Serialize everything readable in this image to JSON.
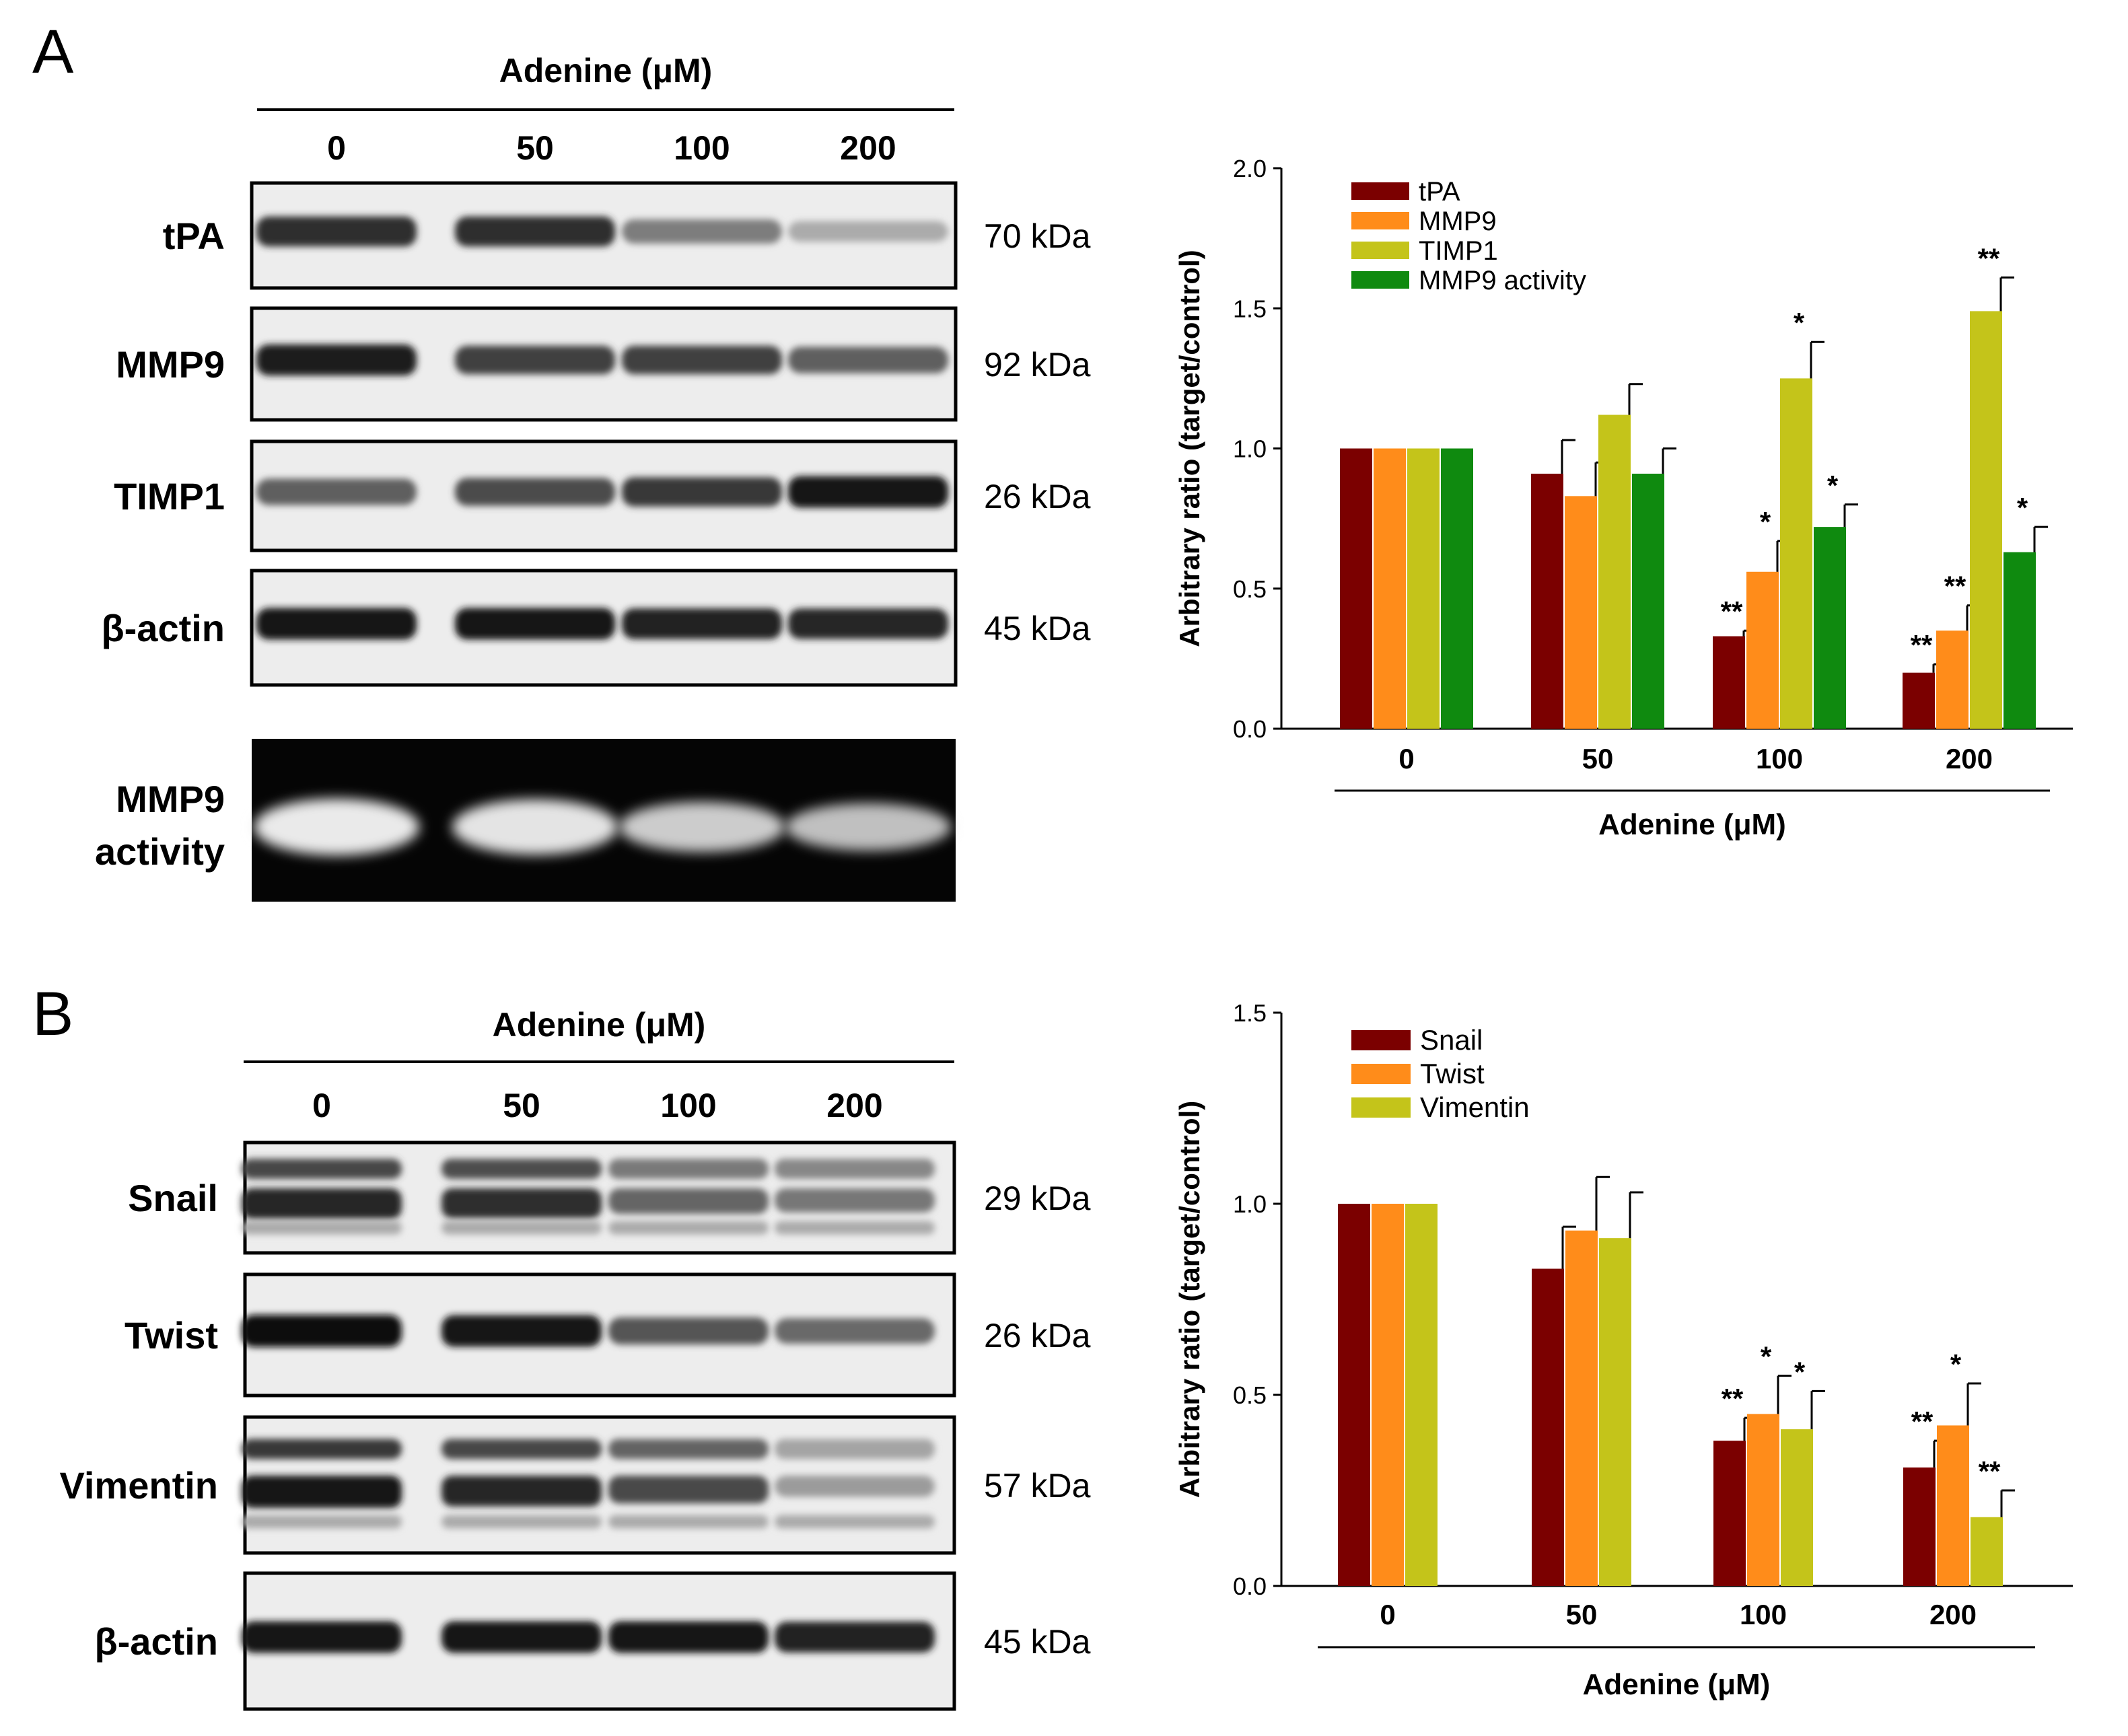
{
  "panels": [
    {
      "letter": "A",
      "treatment_label": "Adenine (μM)",
      "lanes": [
        "0",
        "50",
        "100",
        "200"
      ],
      "blots": [
        {
          "name": "tPA",
          "kda": "70 kDa",
          "dark": false,
          "bands": [
            0.85,
            0.85,
            0.45,
            0.22
          ],
          "double": false
        },
        {
          "name": "MMP9",
          "kda": "92 kDa",
          "dark": false,
          "bands": [
            0.92,
            0.75,
            0.75,
            0.6
          ],
          "double": false
        },
        {
          "name": "TIMP1",
          "kda": "26 kDa",
          "dark": false,
          "bands": [
            0.6,
            0.7,
            0.8,
            0.95
          ],
          "double": false
        },
        {
          "name": "β-actin",
          "kda": "45 kDa",
          "dark": false,
          "bands": [
            0.95,
            0.95,
            0.9,
            0.88
          ],
          "double": false
        },
        {
          "name_lines": [
            "MMP9",
            "activity"
          ],
          "kda": "",
          "dark": true,
          "bands": [
            0.95,
            0.9,
            0.7,
            0.6
          ],
          "double": false
        }
      ]
    },
    {
      "letter": "B",
      "treatment_label": "Adenine (μM)",
      "lanes": [
        "0",
        "50",
        "100",
        "200"
      ],
      "blots": [
        {
          "name": "Snail",
          "kda": "29 kDa",
          "dark": false,
          "bands": [
            0.9,
            0.85,
            0.55,
            0.45
          ],
          "double": true
        },
        {
          "name": "Twist",
          "kda": "26 kDa",
          "dark": false,
          "bands": [
            1.0,
            0.95,
            0.65,
            0.55
          ],
          "double": false
        },
        {
          "name": "Vimentin",
          "kda": "57 kDa",
          "dark": false,
          "bands": [
            1.0,
            0.9,
            0.7,
            0.25
          ],
          "double": true
        },
        {
          "name": "β-actin",
          "kda": "45 kDa",
          "dark": false,
          "bands": [
            0.95,
            0.95,
            0.95,
            0.9
          ],
          "double": false
        }
      ]
    }
  ],
  "chart_data": [
    {
      "type": "bar",
      "xlabel": "Adenine (μM)",
      "ylabel": "Arbitrary ratio (target/control)",
      "categories": [
        "0",
        "50",
        "100",
        "200"
      ],
      "ylim": [
        0,
        2.0
      ],
      "yticks": [
        "0.0",
        "0.5",
        "1.0",
        "1.5",
        "2.0"
      ],
      "legend_position": "top-left",
      "series": [
        {
          "name": "tPA",
          "color": "#7B0000",
          "values": [
            1.0,
            0.91,
            0.33,
            0.2
          ],
          "errors": [
            0,
            0.12,
            0.02,
            0.03
          ],
          "sig": [
            "",
            "",
            "**",
            "**"
          ]
        },
        {
          "name": "MMP9",
          "color": "#FF8C1A",
          "values": [
            1.0,
            0.83,
            0.56,
            0.35
          ],
          "errors": [
            0,
            0.12,
            0.11,
            0.09
          ],
          "sig": [
            "",
            "",
            "*",
            "**"
          ]
        },
        {
          "name": "TIMP1",
          "color": "#C4C41A",
          "values": [
            1.0,
            1.12,
            1.25,
            1.49
          ],
          "errors": [
            0,
            0.11,
            0.13,
            0.12
          ],
          "sig": [
            "",
            "",
            "*",
            "**"
          ]
        },
        {
          "name": "MMP9 activity",
          "color": "#0F8A0F",
          "values": [
            1.0,
            0.91,
            0.72,
            0.63
          ],
          "errors": [
            0,
            0.09,
            0.08,
            0.09
          ],
          "sig": [
            "",
            "",
            "*",
            "*"
          ]
        }
      ]
    },
    {
      "type": "bar",
      "xlabel": "Adenine (μM)",
      "ylabel": "Arbitrary ratio (target/control)",
      "categories": [
        "0",
        "50",
        "100",
        "200"
      ],
      "ylim": [
        0,
        1.5
      ],
      "yticks": [
        "0.0",
        "0.5",
        "1.0",
        "1.5"
      ],
      "legend_position": "top-left",
      "series": [
        {
          "name": "Snail",
          "color": "#7B0000",
          "values": [
            1.0,
            0.83,
            0.38,
            0.31
          ],
          "errors": [
            0,
            0.11,
            0.06,
            0.07
          ],
          "sig": [
            "",
            "",
            "**",
            "**"
          ]
        },
        {
          "name": "Twist",
          "color": "#FF8C1A",
          "values": [
            1.0,
            0.93,
            0.45,
            0.42
          ],
          "errors": [
            0,
            0.14,
            0.1,
            0.11
          ],
          "sig": [
            "",
            "",
            "*",
            "*"
          ]
        },
        {
          "name": "Vimentin",
          "color": "#C4C41A",
          "values": [
            1.0,
            0.91,
            0.41,
            0.18
          ],
          "errors": [
            0,
            0.12,
            0.1,
            0.07
          ],
          "sig": [
            "",
            "",
            "*",
            "**"
          ]
        }
      ]
    }
  ]
}
